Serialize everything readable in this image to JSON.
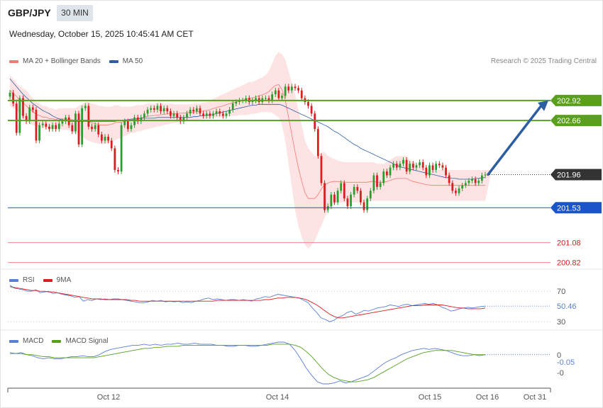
{
  "header": {
    "symbol": "GBP/JPY",
    "timeframe": "30 MIN",
    "datetime": "Wednesday, October 15, 2025 10:45:41 AM CET",
    "credit": "Research © 2025 Trading Central"
  },
  "colors": {
    "ma20": "#f07b72",
    "band_fill": "#fde3e3",
    "ma50": "#2c5ea0",
    "candle_up": "#2e9b2e",
    "candle_down": "#d42020",
    "resistance": "#5aa01e",
    "support": "#1a56c8",
    "support2": "#f08a8a",
    "current": "#333333",
    "arrow": "#2c5ea0",
    "rsi": "#5a7fd4",
    "rsi_ma": "#d42020",
    "macd": "#5a7fd4",
    "macd_signal": "#56a01e"
  },
  "chart_data": [
    {
      "type": "candlestick",
      "legend": [
        {
          "name": "MA 20 + Bollinger Bands",
          "color": "#f07b72"
        },
        {
          "name": "MA 50",
          "color": "#2c5ea0"
        }
      ],
      "x_ticks": [
        "Oct 12",
        "Oct 14",
        "Oct 15",
        "Oct 16",
        "Oct 31"
      ],
      "ylim": [
        200.78,
        203.35
      ],
      "levels": [
        {
          "value": 202.92,
          "label": "202.92",
          "kind": "resistance"
        },
        {
          "value": 202.66,
          "label": "202.66",
          "kind": "resistance"
        },
        {
          "value": 201.96,
          "label": "201.96",
          "kind": "current"
        },
        {
          "value": 201.53,
          "label": "201.53",
          "kind": "support"
        },
        {
          "value": 201.08,
          "label": "201.08",
          "kind": "support2"
        },
        {
          "value": 200.82,
          "label": "200.82",
          "kind": "support2"
        }
      ],
      "close": [
        203.02,
        202.88,
        202.5,
        202.95,
        202.72,
        202.65,
        202.83,
        202.8,
        202.4,
        202.6,
        202.62,
        202.58,
        202.55,
        202.6,
        202.55,
        202.62,
        202.65,
        202.7,
        202.6,
        202.52,
        202.75,
        202.35,
        202.82,
        202.85,
        202.58,
        202.55,
        202.6,
        202.48,
        202.4,
        202.45,
        202.4,
        202.3,
        202.02,
        202.0,
        202.6,
        202.65,
        202.55,
        202.6,
        202.7,
        202.65,
        202.7,
        202.75,
        202.8,
        202.82,
        202.8,
        202.85,
        202.78,
        202.82,
        202.78,
        202.72,
        202.75,
        202.7,
        202.65,
        202.7,
        202.75,
        202.8,
        202.78,
        202.82,
        202.75,
        202.72,
        202.75,
        202.72,
        202.75,
        202.78,
        202.75,
        202.72,
        202.75,
        202.8,
        202.88,
        202.9,
        202.92,
        202.92,
        202.95,
        202.9,
        202.92,
        202.95,
        202.9,
        202.95,
        202.95,
        202.92,
        203.0,
        203.05,
        202.95,
        202.98,
        203.1,
        203.05,
        203.1,
        203.08,
        203.05,
        202.95,
        202.9,
        202.85,
        202.75,
        202.55,
        202.2,
        201.85,
        201.5,
        201.55,
        201.7,
        201.6,
        201.75,
        201.85,
        201.65,
        201.55,
        201.7,
        201.8,
        201.75,
        201.6,
        201.5,
        201.65,
        201.75,
        201.95,
        201.8,
        201.85,
        202.0,
        201.95,
        202.05,
        202.1,
        202.05,
        202.1,
        202.15,
        202.0,
        202.1,
        202.05,
        202.08,
        202.12,
        202.05,
        201.95,
        202.08,
        202.02,
        202.1,
        202.08,
        202.05,
        201.95,
        201.85,
        201.75,
        201.72,
        201.78,
        201.82,
        201.85,
        201.88,
        201.9,
        201.85,
        201.88,
        201.95,
        201.96
      ],
      "bb_upper": [
        203.25,
        203.2,
        203.15,
        203.1,
        203.08,
        203.05,
        203.0,
        202.95,
        202.9,
        202.88,
        202.85,
        202.85,
        202.82,
        202.82,
        202.8,
        202.82,
        202.82,
        202.82,
        202.82,
        202.82,
        202.82,
        202.85,
        202.87,
        202.9,
        202.9,
        202.88,
        202.87,
        202.85,
        202.85,
        202.84,
        202.84,
        202.84,
        202.86,
        202.86,
        202.84,
        202.84,
        202.84,
        202.84,
        202.85,
        202.86,
        202.86,
        202.87,
        202.88,
        202.88,
        202.88,
        202.88,
        202.88,
        202.88,
        202.88,
        202.88,
        202.87,
        202.87,
        202.87,
        202.87,
        202.87,
        202.87,
        202.88,
        202.88,
        202.88,
        202.89,
        202.9,
        202.92,
        202.94,
        202.96,
        202.98,
        203.0,
        203.02,
        203.04,
        203.06,
        203.08,
        203.1,
        203.12,
        203.14,
        203.16,
        203.16,
        203.18,
        203.2,
        203.22,
        203.25,
        203.3,
        203.4,
        203.5,
        203.55,
        203.52,
        203.45,
        203.3,
        203.15,
        203.0,
        202.8,
        202.6,
        202.4,
        202.3,
        202.25,
        202.2,
        202.2,
        202.25,
        202.25,
        202.2,
        202.18,
        202.16,
        202.14,
        202.13,
        202.12,
        202.12,
        202.12,
        202.12,
        202.12,
        202.12,
        202.12,
        202.12,
        202.12,
        202.12,
        202.1,
        202.1,
        202.1,
        202.12,
        202.15,
        202.18,
        202.2,
        202.2,
        202.2,
        202.2,
        202.15,
        202.12,
        202.1,
        202.08,
        202.06,
        202.04,
        202.03,
        202.02,
        202.02,
        202.02,
        202.02,
        202.02,
        202.02,
        202.02,
        202.02,
        202.02,
        202.02,
        202.02,
        202.02,
        202.02,
        202.02,
        202.02,
        202.02,
        202.02,
        202.02,
        202.02
      ],
      "bb_lower": [
        202.85,
        202.82,
        202.8,
        202.75,
        202.7,
        202.65,
        202.62,
        202.6,
        202.58,
        202.57,
        202.56,
        202.56,
        202.55,
        202.55,
        202.55,
        202.55,
        202.54,
        202.54,
        202.53,
        202.52,
        202.5,
        202.48,
        202.45,
        202.42,
        202.4,
        202.38,
        202.37,
        202.36,
        202.35,
        202.36,
        202.37,
        202.38,
        202.4,
        202.42,
        202.44,
        202.46,
        202.48,
        202.5,
        202.5,
        202.52,
        202.52,
        202.54,
        202.55,
        202.56,
        202.57,
        202.58,
        202.59,
        202.6,
        202.61,
        202.62,
        202.63,
        202.63,
        202.64,
        202.64,
        202.65,
        202.66,
        202.66,
        202.67,
        202.67,
        202.68,
        202.68,
        202.68,
        202.69,
        202.7,
        202.7,
        202.7,
        202.71,
        202.72,
        202.72,
        202.72,
        202.73,
        202.73,
        202.73,
        202.74,
        202.75,
        202.75,
        202.76,
        202.77,
        202.77,
        202.77,
        202.76,
        202.73,
        202.7,
        202.6,
        202.4,
        202.1,
        201.8,
        201.5,
        201.3,
        201.15,
        201.05,
        201.0,
        201.05,
        201.1,
        201.2,
        201.3,
        201.4,
        201.5,
        201.55,
        201.58,
        201.6,
        201.6,
        201.6,
        201.6,
        201.6,
        201.6,
        201.6,
        201.6,
        201.6,
        201.6,
        201.62,
        201.62,
        201.62,
        201.62,
        201.62,
        201.62,
        201.62,
        201.62,
        201.62,
        201.62,
        201.62,
        201.62,
        201.62,
        201.62,
        201.62,
        201.62,
        201.62,
        201.62,
        201.62,
        201.62,
        201.62,
        201.62,
        201.62,
        201.62,
        201.62,
        201.62,
        201.62,
        201.62,
        201.62,
        201.62,
        201.62,
        201.62,
        201.62,
        201.62,
        201.62,
        201.62
      ],
      "ma50": [
        203.2,
        203.15,
        203.1,
        203.05,
        203.0,
        202.96,
        202.92,
        202.88,
        202.85,
        202.82,
        202.79,
        202.77,
        202.75,
        202.72,
        202.7,
        202.68,
        202.67,
        202.66,
        202.65,
        202.65,
        202.65,
        202.65,
        202.65,
        202.65,
        202.65,
        202.65,
        202.65,
        202.65,
        202.65,
        202.65,
        202.65,
        202.65,
        202.65,
        202.66,
        202.66,
        202.67,
        202.67,
        202.68,
        202.68,
        202.68,
        202.69,
        202.69,
        202.69,
        202.69,
        202.69,
        202.7,
        202.7,
        202.7,
        202.7,
        202.7,
        202.7,
        202.7,
        202.7,
        202.7,
        202.7,
        202.7,
        202.71,
        202.71,
        202.72,
        202.72,
        202.73,
        202.73,
        202.74,
        202.75,
        202.76,
        202.77,
        202.78,
        202.79,
        202.8,
        202.81,
        202.82,
        202.83,
        202.84,
        202.85,
        202.86,
        202.86,
        202.87,
        202.87,
        202.87,
        202.87,
        202.87,
        202.87,
        202.87,
        202.86,
        202.84,
        202.82,
        202.8,
        202.78,
        202.76,
        202.74,
        202.72,
        202.7,
        202.68,
        202.66,
        202.64,
        202.62,
        202.6,
        202.58,
        202.55,
        202.52,
        202.5,
        202.47,
        202.44,
        202.41,
        202.38,
        202.35,
        202.33,
        202.3,
        202.28,
        202.26,
        202.24,
        202.22,
        202.2,
        202.18,
        202.16,
        202.14,
        202.12,
        202.1,
        202.08,
        202.06,
        202.05,
        202.04,
        202.03,
        202.02,
        202.01,
        202.0,
        201.99,
        201.98,
        201.97,
        201.96,
        201.95,
        201.94,
        201.93,
        201.92,
        201.92,
        201.91,
        201.91,
        201.9,
        201.9,
        201.9,
        201.9,
        201.9,
        201.91,
        201.91,
        201.92,
        201.92
      ]
    },
    {
      "type": "line",
      "legend": [
        {
          "name": "RSI",
          "color": "#5a7fd4"
        },
        {
          "name": "9MA",
          "color": "#d42020"
        }
      ],
      "ylim": [
        20,
        85
      ],
      "levels": [
        {
          "value": 70,
          "label": "70"
        },
        {
          "value": 30,
          "label": "30"
        }
      ],
      "current_label": "50.46",
      "rsi": [
        78,
        74,
        73,
        72,
        70,
        70,
        72,
        68,
        69,
        70,
        67,
        68,
        66,
        65,
        64,
        62,
        63,
        57,
        59,
        58,
        60,
        59,
        60,
        59,
        60,
        60,
        59,
        58,
        57,
        56,
        55,
        55,
        56,
        58,
        57,
        58,
        56,
        57,
        56,
        57,
        55,
        56,
        55,
        57,
        58,
        60,
        61,
        59,
        60,
        59,
        58,
        59,
        59,
        58,
        59,
        58,
        57,
        60,
        61,
        63,
        62,
        64,
        66,
        65,
        64,
        63,
        62,
        61,
        58,
        55,
        48,
        42,
        35,
        33,
        30,
        32,
        36,
        38,
        42,
        44,
        40,
        42,
        45,
        44,
        46,
        48,
        49,
        50,
        52,
        51,
        50,
        52,
        53,
        51,
        52,
        53,
        54,
        53,
        54,
        52,
        49,
        47,
        44,
        45,
        47,
        48,
        49,
        48,
        49,
        50,
        50.46
      ],
      "rsi_ma": [
        76,
        75,
        74,
        73,
        72,
        71,
        71,
        70,
        70,
        69,
        69,
        68,
        67,
        66,
        65,
        64,
        63,
        62,
        61,
        60,
        60,
        60,
        59,
        59,
        59,
        59,
        59,
        59,
        58,
        58,
        57,
        57,
        57,
        57,
        57,
        57,
        57,
        57,
        57,
        57,
        57,
        57,
        57,
        57,
        57,
        57,
        57,
        57,
        58,
        58,
        58,
        58,
        58,
        58,
        58,
        58,
        58,
        58,
        58,
        59,
        59,
        60,
        61,
        61,
        62,
        62,
        62,
        61,
        60,
        58,
        55,
        52,
        48,
        44,
        40,
        37,
        35,
        35,
        36,
        37,
        38,
        39,
        40,
        41,
        42,
        43,
        44,
        45,
        46,
        47,
        48,
        49,
        50,
        51,
        51,
        51,
        52,
        52,
        52,
        52,
        52,
        51,
        50,
        49,
        48,
        48,
        47,
        47,
        47,
        47,
        48
      ]
    },
    {
      "type": "line",
      "legend": [
        {
          "name": "MACD",
          "color": "#5a7fd4"
        },
        {
          "name": "MACD Signal",
          "color": "#56a01e"
        }
      ],
      "ylim": [
        -0.32,
        0.12
      ],
      "tick_labels": [
        "0",
        "-0.05",
        "-0"
      ],
      "macd": [
        0.0,
        -0.01,
        0.0,
        -0.02,
        -0.03,
        -0.05,
        -0.06,
        -0.05,
        -0.06,
        -0.06,
        -0.05,
        -0.04,
        -0.04,
        -0.03,
        -0.04,
        -0.04,
        -0.02,
        0.01,
        0.03,
        0.04,
        0.05,
        0.06,
        0.07,
        0.07,
        0.08,
        0.07,
        0.08,
        0.07,
        0.08,
        0.08,
        0.09,
        0.08,
        0.08,
        0.09,
        0.08,
        0.08,
        0.08,
        0.07,
        0.07,
        0.06,
        0.06,
        0.07,
        0.07,
        0.06,
        0.06,
        0.07,
        0.08,
        0.09,
        0.1,
        0.1,
        0.08,
        0.02,
        -0.06,
        -0.15,
        -0.22,
        -0.28,
        -0.3,
        -0.3,
        -0.29,
        -0.27,
        -0.29,
        -0.28,
        -0.26,
        -0.24,
        -0.22,
        -0.18,
        -0.14,
        -0.1,
        -0.07,
        -0.05,
        -0.02,
        0.0,
        0.02,
        0.03,
        0.04,
        0.03,
        0.04,
        0.03,
        0.02,
        0.0,
        -0.02,
        -0.03,
        -0.03,
        -0.02,
        -0.03,
        -0.02
      ],
      "signal": [
        -0.01,
        -0.01,
        -0.01,
        -0.02,
        -0.02,
        -0.03,
        -0.04,
        -0.04,
        -0.05,
        -0.05,
        -0.05,
        -0.05,
        -0.05,
        -0.05,
        -0.05,
        -0.05,
        -0.04,
        -0.03,
        -0.02,
        -0.01,
        0.0,
        0.01,
        0.02,
        0.03,
        0.04,
        0.04,
        0.05,
        0.05,
        0.06,
        0.06,
        0.06,
        0.07,
        0.07,
        0.07,
        0.07,
        0.07,
        0.07,
        0.07,
        0.07,
        0.07,
        0.07,
        0.07,
        0.07,
        0.07,
        0.07,
        0.07,
        0.07,
        0.08,
        0.08,
        0.08,
        0.08,
        0.07,
        0.05,
        0.01,
        -0.04,
        -0.1,
        -0.16,
        -0.21,
        -0.24,
        -0.26,
        -0.27,
        -0.28,
        -0.28,
        -0.27,
        -0.26,
        -0.24,
        -0.21,
        -0.18,
        -0.15,
        -0.12,
        -0.09,
        -0.06,
        -0.04,
        -0.02,
        0.0,
        0.01,
        0.02,
        0.02,
        0.02,
        0.02,
        0.01,
        0.0,
        -0.01,
        -0.02,
        -0.02,
        -0.02
      ]
    }
  ]
}
